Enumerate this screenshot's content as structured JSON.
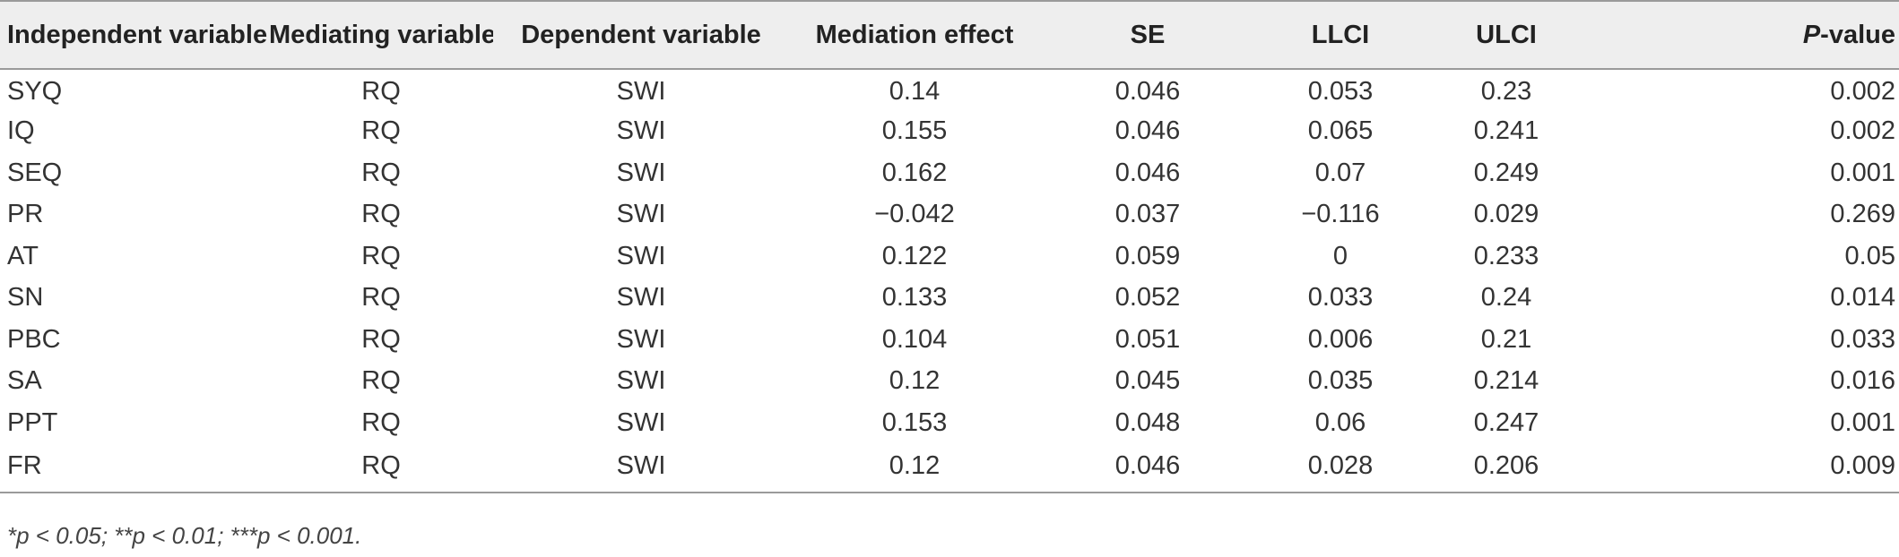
{
  "table": {
    "headers": {
      "independent": "Independent variable",
      "mediating": "Mediating variable",
      "dependent": "Dependent variable",
      "mediation_effect": "Mediation effect",
      "se": "SE",
      "llci": "LLCI",
      "ulci": "ULCI",
      "p_italic": "P",
      "p_suffix": "-value"
    },
    "rows": [
      [
        "SYQ",
        "RQ",
        "SWI",
        "0.14",
        "0.046",
        "0.053",
        "0.23",
        "0.002"
      ],
      [
        "IQ",
        "RQ",
        "SWI",
        "0.155",
        "0.046",
        "0.065",
        "0.241",
        "0.002"
      ],
      [
        "SEQ",
        "RQ",
        "SWI",
        "0.162",
        "0.046",
        "0.07",
        "0.249",
        "0.001"
      ],
      [
        "PR",
        "RQ",
        "SWI",
        "−0.042",
        "0.037",
        "−0.116",
        "0.029",
        "0.269"
      ],
      [
        "AT",
        "RQ",
        "SWI",
        "0.122",
        "0.059",
        "0",
        "0.233",
        "0.05"
      ],
      [
        "SN",
        "RQ",
        "SWI",
        "0.133",
        "0.052",
        "0.033",
        "0.24",
        "0.014"
      ],
      [
        "PBC",
        "RQ",
        "SWI",
        "0.104",
        "0.051",
        "0.006",
        "0.21",
        "0.033"
      ],
      [
        "SA",
        "RQ",
        "SWI",
        "0.12",
        "0.045",
        "0.035",
        "0.214",
        "0.016"
      ],
      [
        "PPT",
        "RQ",
        "SWI",
        "0.153",
        "0.048",
        "0.06",
        "0.247",
        "0.001"
      ],
      [
        "FR",
        "RQ",
        "SWI",
        "0.12",
        "0.046",
        "0.028",
        "0.206",
        "0.009"
      ]
    ]
  },
  "footnote": "*p < 0.05; **p < 0.01; ***p < 0.001."
}
